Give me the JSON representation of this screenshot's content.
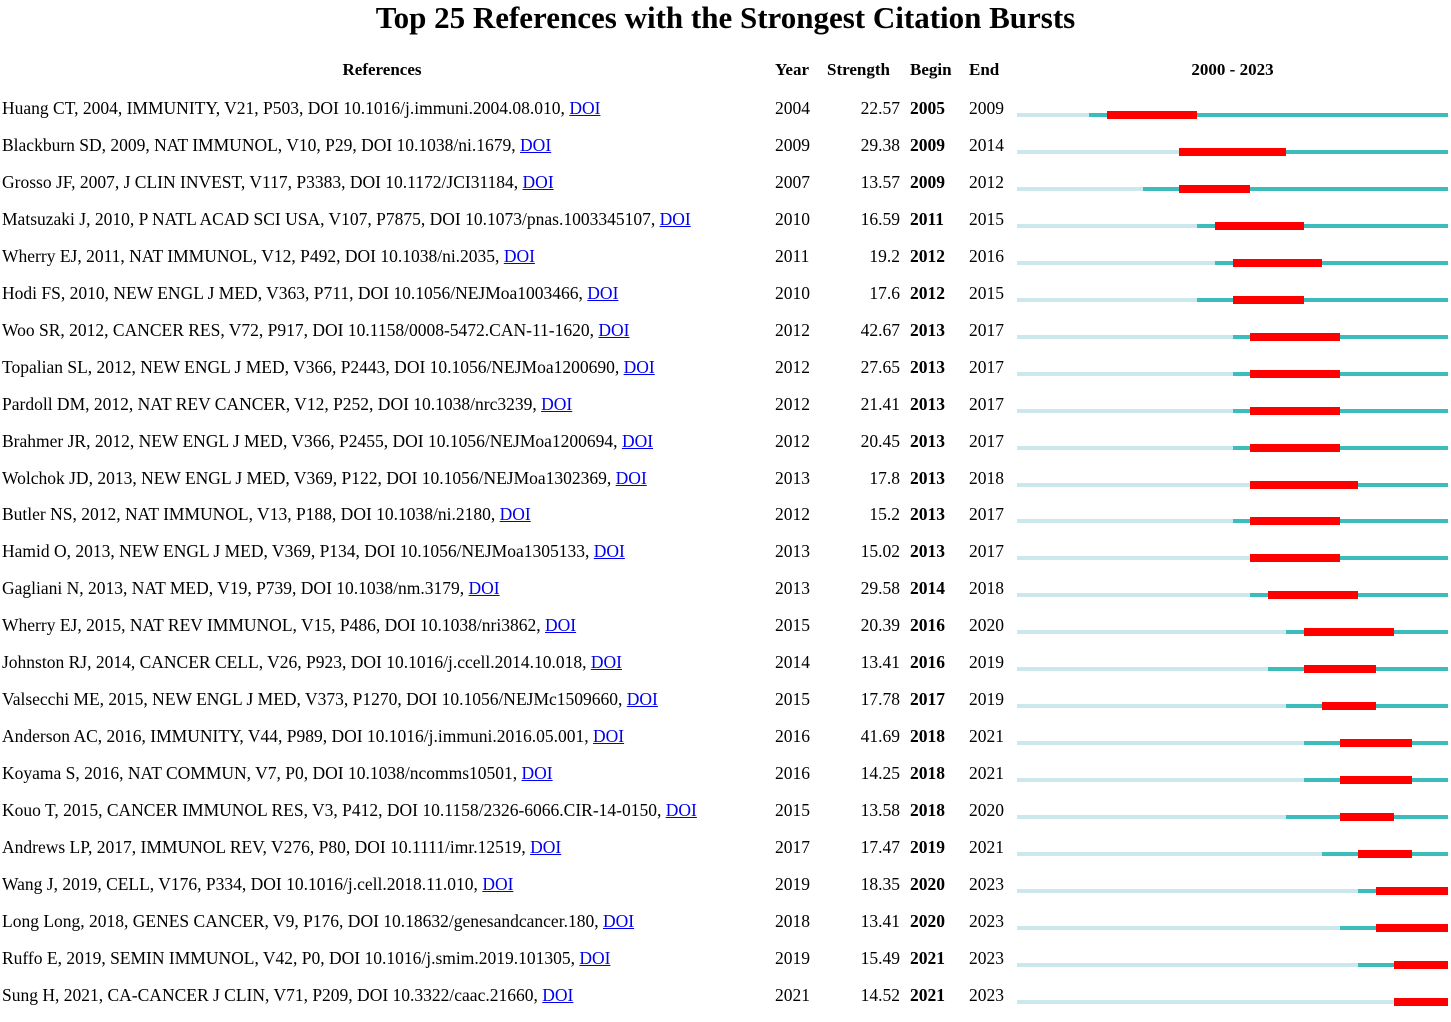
{
  "chart_data": {
    "type": "timeline",
    "title": "Top 25 References with the Strongest Citation Bursts",
    "columns": {
      "references": "References",
      "year": "Year",
      "strength": "Strength",
      "begin": "Begin",
      "end": "End",
      "range": "2000 - 2023"
    },
    "timeline_start": 2000,
    "timeline_end": 2023,
    "colors": {
      "inactive": "#cce8ec",
      "active": "#3dbcbc",
      "burst": "#ff0000",
      "link": "#0000ee"
    },
    "rows": [
      {
        "ref": "Huang CT, 2004, IMMUNITY, V21, P503, DOI 10.1016/j.immuni.2004.08.010,",
        "doi": "DOI",
        "year": "2004",
        "strength": "22.57",
        "begin": "2005",
        "end": "2009"
      },
      {
        "ref": "Blackburn SD, 2009, NAT IMMUNOL, V10, P29, DOI 10.1038/ni.1679,",
        "doi": "DOI",
        "year": "2009",
        "strength": "29.38",
        "begin": "2009",
        "end": "2014"
      },
      {
        "ref": "Grosso JF, 2007, J CLIN INVEST, V117, P3383, DOI 10.1172/JCI31184,",
        "doi": "DOI",
        "year": "2007",
        "strength": "13.57",
        "begin": "2009",
        "end": "2012"
      },
      {
        "ref": "Matsuzaki J, 2010, P NATL ACAD SCI USA, V107, P7875, DOI 10.1073/pnas.1003345107,",
        "doi": "DOI",
        "year": "2010",
        "strength": "16.59",
        "begin": "2011",
        "end": "2015"
      },
      {
        "ref": "Wherry EJ, 2011, NAT IMMUNOL, V12, P492, DOI 10.1038/ni.2035,",
        "doi": "DOI",
        "year": "2011",
        "strength": "19.2",
        "begin": "2012",
        "end": "2016"
      },
      {
        "ref": "Hodi FS, 2010, NEW ENGL J MED, V363, P711, DOI 10.1056/NEJMoa1003466,",
        "doi": "DOI",
        "year": "2010",
        "strength": "17.6",
        "begin": "2012",
        "end": "2015"
      },
      {
        "ref": "Woo SR, 2012, CANCER RES, V72, P917, DOI 10.1158/0008-5472.CAN-11-1620,",
        "doi": "DOI",
        "year": "2012",
        "strength": "42.67",
        "begin": "2013",
        "end": "2017"
      },
      {
        "ref": "Topalian SL, 2012, NEW ENGL J MED, V366, P2443, DOI 10.1056/NEJMoa1200690,",
        "doi": "DOI",
        "year": "2012",
        "strength": "27.65",
        "begin": "2013",
        "end": "2017"
      },
      {
        "ref": "Pardoll DM, 2012, NAT REV CANCER, V12, P252, DOI 10.1038/nrc3239,",
        "doi": "DOI",
        "year": "2012",
        "strength": "21.41",
        "begin": "2013",
        "end": "2017"
      },
      {
        "ref": "Brahmer JR, 2012, NEW ENGL J MED, V366, P2455, DOI 10.1056/NEJMoa1200694,",
        "doi": "DOI",
        "year": "2012",
        "strength": "20.45",
        "begin": "2013",
        "end": "2017"
      },
      {
        "ref": "Wolchok JD, 2013, NEW ENGL J MED, V369, P122, DOI 10.1056/NEJMoa1302369,",
        "doi": "DOI",
        "year": "2013",
        "strength": "17.8",
        "begin": "2013",
        "end": "2018"
      },
      {
        "ref": "Butler NS, 2012, NAT IMMUNOL, V13, P188, DOI 10.1038/ni.2180,",
        "doi": "DOI",
        "year": "2012",
        "strength": "15.2",
        "begin": "2013",
        "end": "2017"
      },
      {
        "ref": "Hamid O, 2013, NEW ENGL J MED, V369, P134, DOI 10.1056/NEJMoa1305133,",
        "doi": "DOI",
        "year": "2013",
        "strength": "15.02",
        "begin": "2013",
        "end": "2017"
      },
      {
        "ref": "Gagliani N, 2013, NAT MED, V19, P739, DOI 10.1038/nm.3179,",
        "doi": "DOI",
        "year": "2013",
        "strength": "29.58",
        "begin": "2014",
        "end": "2018"
      },
      {
        "ref": "Wherry EJ, 2015, NAT REV IMMUNOL, V15, P486, DOI 10.1038/nri3862,",
        "doi": "DOI",
        "year": "2015",
        "strength": "20.39",
        "begin": "2016",
        "end": "2020"
      },
      {
        "ref": "Johnston RJ, 2014, CANCER CELL, V26, P923, DOI 10.1016/j.ccell.2014.10.018,",
        "doi": "DOI",
        "year": "2014",
        "strength": "13.41",
        "begin": "2016",
        "end": "2019"
      },
      {
        "ref": "Valsecchi ME, 2015, NEW ENGL J MED, V373, P1270, DOI 10.1056/NEJMc1509660,",
        "doi": "DOI",
        "year": "2015",
        "strength": "17.78",
        "begin": "2017",
        "end": "2019"
      },
      {
        "ref": "Anderson AC, 2016, IMMUNITY, V44, P989, DOI 10.1016/j.immuni.2016.05.001,",
        "doi": "DOI",
        "year": "2016",
        "strength": "41.69",
        "begin": "2018",
        "end": "2021"
      },
      {
        "ref": "Koyama S, 2016, NAT COMMUN, V7, P0, DOI 10.1038/ncomms10501,",
        "doi": "DOI",
        "year": "2016",
        "strength": "14.25",
        "begin": "2018",
        "end": "2021"
      },
      {
        "ref": "Kouo T, 2015, CANCER IMMUNOL RES, V3, P412, DOI 10.1158/2326-6066.CIR-14-0150,",
        "doi": "DOI",
        "year": "2015",
        "strength": "13.58",
        "begin": "2018",
        "end": "2020"
      },
      {
        "ref": "Andrews LP, 2017, IMMUNOL REV, V276, P80, DOI 10.1111/imr.12519,",
        "doi": "DOI",
        "year": "2017",
        "strength": "17.47",
        "begin": "2019",
        "end": "2021"
      },
      {
        "ref": "Wang J, 2019, CELL, V176, P334, DOI 10.1016/j.cell.2018.11.010,",
        "doi": "DOI",
        "year": "2019",
        "strength": "18.35",
        "begin": "2020",
        "end": "2023"
      },
      {
        "ref": "Long Long, 2018, GENES CANCER, V9, P176, DOI 10.18632/genesandcancer.180,",
        "doi": "DOI",
        "year": "2018",
        "strength": "13.41",
        "begin": "2020",
        "end": "2023"
      },
      {
        "ref": "Ruffo E, 2019, SEMIN IMMUNOL, V42, P0, DOI 10.1016/j.smim.2019.101305,",
        "doi": "DOI",
        "year": "2019",
        "strength": "15.49",
        "begin": "2021",
        "end": "2023"
      },
      {
        "ref": "Sung H, 2021, CA-CANCER J CLIN, V71, P209, DOI 10.3322/caac.21660,",
        "doi": "DOI",
        "year": "2021",
        "strength": "14.52",
        "begin": "2021",
        "end": "2023"
      }
    ]
  }
}
